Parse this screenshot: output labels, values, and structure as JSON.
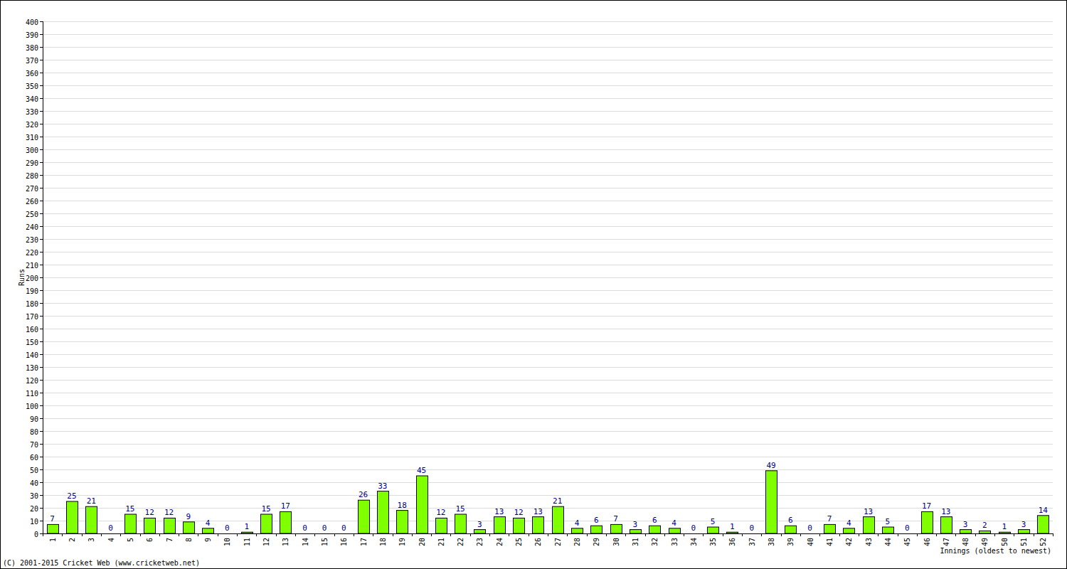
{
  "chart_data": {
    "type": "bar",
    "x_label": "Innings (oldest to newest)",
    "y_label": "Runs",
    "footer": "(C) 2001-2015 Cricket Web (www.cricketweb.net)",
    "categories": [
      "1",
      "2",
      "3",
      "4",
      "5",
      "6",
      "7",
      "8",
      "9",
      "10",
      "11",
      "12",
      "13",
      "14",
      "15",
      "16",
      "17",
      "18",
      "19",
      "20",
      "21",
      "22",
      "23",
      "24",
      "25",
      "26",
      "27",
      "28",
      "29",
      "30",
      "31",
      "32",
      "33",
      "34",
      "35",
      "36",
      "37",
      "38",
      "39",
      "40",
      "41",
      "42",
      "43",
      "44",
      "45",
      "46",
      "47",
      "48",
      "49",
      "50",
      "51",
      "52"
    ],
    "values": [
      7,
      25,
      21,
      0,
      15,
      12,
      12,
      9,
      4,
      0,
      1,
      15,
      17,
      0,
      0,
      0,
      26,
      33,
      18,
      45,
      12,
      15,
      3,
      13,
      12,
      13,
      21,
      4,
      6,
      7,
      3,
      6,
      4,
      0,
      5,
      1,
      0,
      49,
      6,
      0,
      7,
      4,
      13,
      5,
      0,
      17,
      13,
      3,
      2,
      1,
      3,
      14
    ],
    "color": "#80ff00",
    "ylim": [
      0,
      400
    ],
    "yticks": [
      0,
      10,
      20,
      30,
      40,
      50,
      60,
      70,
      80,
      90,
      100,
      110,
      120,
      130,
      140,
      150,
      160,
      170,
      180,
      190,
      200,
      210,
      220,
      230,
      240,
      250,
      260,
      270,
      280,
      290,
      300,
      310,
      320,
      330,
      340,
      350,
      360,
      370,
      380,
      390,
      400
    ],
    "grid": true,
    "data_labels": true
  }
}
